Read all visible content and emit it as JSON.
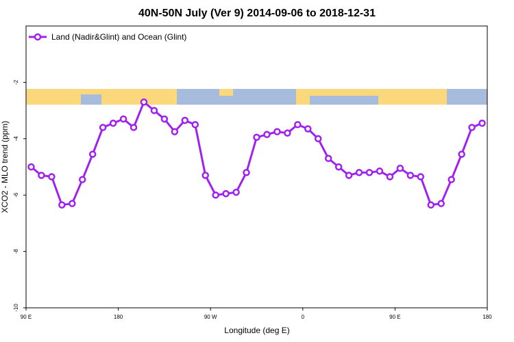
{
  "chart_data": {
    "type": "line",
    "title": "40N-50N July (Ver 9)   2014-09-06 to 2018-12-31",
    "x_label": "Longitude (deg E)",
    "y_label": "XCO2 - MLO trend (ppm)",
    "xlim": [
      90,
      540
    ],
    "xticks": [
      {
        "value": 90,
        "label": "90 E"
      },
      180,
      {
        "value": 270,
        "label": "90 W"
      },
      {
        "value": 360,
        "label": "0"
      },
      {
        "value": 450,
        "label": "90 E"
      },
      {
        "value": 540,
        "label": "180"
      }
    ],
    "ylim": [
      -10,
      0
    ],
    "yticks": [
      -10,
      -8,
      -6,
      -4,
      -2
    ],
    "legend": "top-left",
    "x": [
      95,
      105,
      115,
      125,
      135,
      145,
      155,
      165,
      175,
      185,
      195,
      205,
      215,
      225,
      235,
      245,
      255,
      265,
      275,
      285,
      295,
      305,
      315,
      325,
      335,
      345,
      355,
      365,
      375,
      385,
      395,
      405,
      415,
      425,
      435,
      445,
      455,
      465,
      475,
      485,
      495,
      505,
      515,
      525,
      535
    ],
    "series": [
      {
        "name": "Land (Nadir&Glint) and Ocean (Glint)",
        "color": "#a020f0",
        "values": [
          -5.0,
          -5.3,
          -5.35,
          -6.35,
          -6.3,
          -5.45,
          -4.55,
          -3.6,
          -3.45,
          -3.3,
          -3.6,
          -2.7,
          -3.0,
          -3.3,
          -3.75,
          -3.35,
          -3.5,
          -5.3,
          -6.0,
          -5.95,
          -5.9,
          -5.2,
          -3.95,
          -3.85,
          -3.75,
          -3.8,
          -3.5,
          -3.65,
          -4.0,
          -4.7,
          -5.0,
          -5.3,
          -5.2,
          -5.2,
          -5.15,
          -5.35,
          -5.05,
          -5.3,
          -5.35,
          -6.35,
          -6.3,
          -5.45,
          -4.55,
          -3.6,
          -3.45
        ]
      }
    ]
  }
}
